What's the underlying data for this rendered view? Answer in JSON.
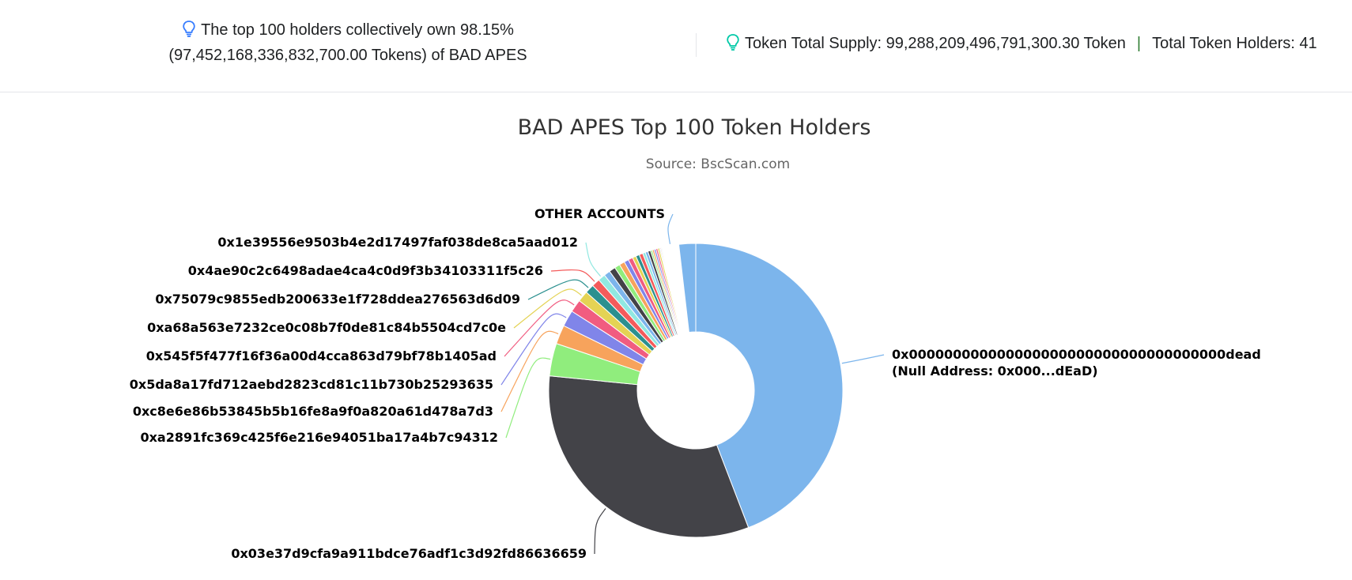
{
  "summary": {
    "top_holders_line1": "The top 100 holders collectively own 98.15%",
    "top_holders_line2": "(97,452,168,336,832,700.00 Tokens) of BAD APES",
    "total_supply": "Token Total Supply: 99,288,209,496,791,300.30 Token",
    "separator": "|",
    "total_holders": "Total Token Holders: 41"
  },
  "colors": {
    "bulb": "#00c9a7",
    "bulb_left": "#377dff"
  },
  "chart_data": {
    "type": "pie",
    "title": "BAD APES Top 100 Token Holders",
    "subtitle": "Source: BscScan.com",
    "donut": true,
    "slices": [
      {
        "label": "0x000000000000000000000000000000000000dead",
        "sublabel": "(Null Address: 0x000...dEaD)",
        "percent": 44.3,
        "color": "#7cb5ec",
        "labeled": true
      },
      {
        "label": "0x03e37d9cfa9a911bdce76adf1c3d92fd86636659",
        "percent": 32.5,
        "color": "#434348",
        "labeled": true
      },
      {
        "label": "0xa2891fc369c425f6e216e94051ba17a4b7c94312",
        "percent": 3.6,
        "color": "#90ed7d",
        "labeled": true
      },
      {
        "label": "0xc8e6e86b53845b5b16fe8a9f0a820a61d478a7d3",
        "percent": 2.1,
        "color": "#f7a35c",
        "labeled": true
      },
      {
        "label": "0x5da8a17fd712aebd2823cd81c11b730b25293635",
        "percent": 1.8,
        "color": "#8085e9",
        "labeled": true
      },
      {
        "label": "0x545f5f477f16f36a00d4cca863d79bf78b1405ad",
        "percent": 1.4,
        "color": "#f15c80",
        "labeled": true
      },
      {
        "label": "0xa68a563e7232ce0c08b7f0de81c84b5504cd7c0e",
        "percent": 1.2,
        "color": "#e4d354",
        "labeled": true
      },
      {
        "label": "0x75079c9855edb200633e1f728ddea276563d6d09",
        "percent": 1.0,
        "color": "#2b908f",
        "labeled": true
      },
      {
        "label": "0x4ae90c2c6498adae4ca4c0d9f3b34103311f5c26",
        "percent": 0.9,
        "color": "#f45b5b",
        "labeled": true
      },
      {
        "label": "0x1e39556e9503b4e2d17497faf038de8ca5aad012",
        "percent": 0.8,
        "color": "#91e8e1",
        "labeled": true
      },
      {
        "percent": 0.7,
        "color": "#7cb5ec",
        "labeled": false
      },
      {
        "percent": 0.7,
        "color": "#434348",
        "labeled": false
      },
      {
        "percent": 0.6,
        "color": "#90ed7d",
        "labeled": false
      },
      {
        "percent": 0.6,
        "color": "#f7a35c",
        "labeled": false
      },
      {
        "percent": 0.5,
        "color": "#8085e9",
        "labeled": false
      },
      {
        "percent": 0.5,
        "color": "#f15c80",
        "labeled": false
      },
      {
        "percent": 0.4,
        "color": "#e4d354",
        "labeled": false
      },
      {
        "percent": 0.4,
        "color": "#2b908f",
        "labeled": false
      },
      {
        "percent": 0.4,
        "color": "#f45b5b",
        "labeled": false
      },
      {
        "percent": 0.3,
        "color": "#91e8e1",
        "labeled": false
      },
      {
        "percent": 0.3,
        "color": "#7cb5ec",
        "labeled": false
      },
      {
        "percent": 0.3,
        "color": "#434348",
        "labeled": false
      },
      {
        "percent": 0.2,
        "color": "#90ed7d",
        "labeled": false
      },
      {
        "percent": 0.2,
        "color": "#f7a35c",
        "labeled": false
      },
      {
        "percent": 0.2,
        "color": "#8085e9",
        "labeled": false
      },
      {
        "percent": 0.2,
        "color": "#f15c80",
        "labeled": false
      },
      {
        "percent": 0.2,
        "color": "#e4d354",
        "labeled": false
      },
      {
        "percent": 0.1,
        "color": "#2b908f",
        "labeled": false
      },
      {
        "percent": 0.1,
        "color": "#f45b5b",
        "labeled": false
      },
      {
        "percent": 0.1,
        "color": "#91e8e1",
        "labeled": false
      },
      {
        "label": "OTHER ACCOUNTS",
        "percent": 1.85,
        "color": "#ffffff",
        "labeled": true
      },
      {
        "percent": 1.85,
        "color": "#7cb5ec",
        "labeled": false
      }
    ]
  }
}
